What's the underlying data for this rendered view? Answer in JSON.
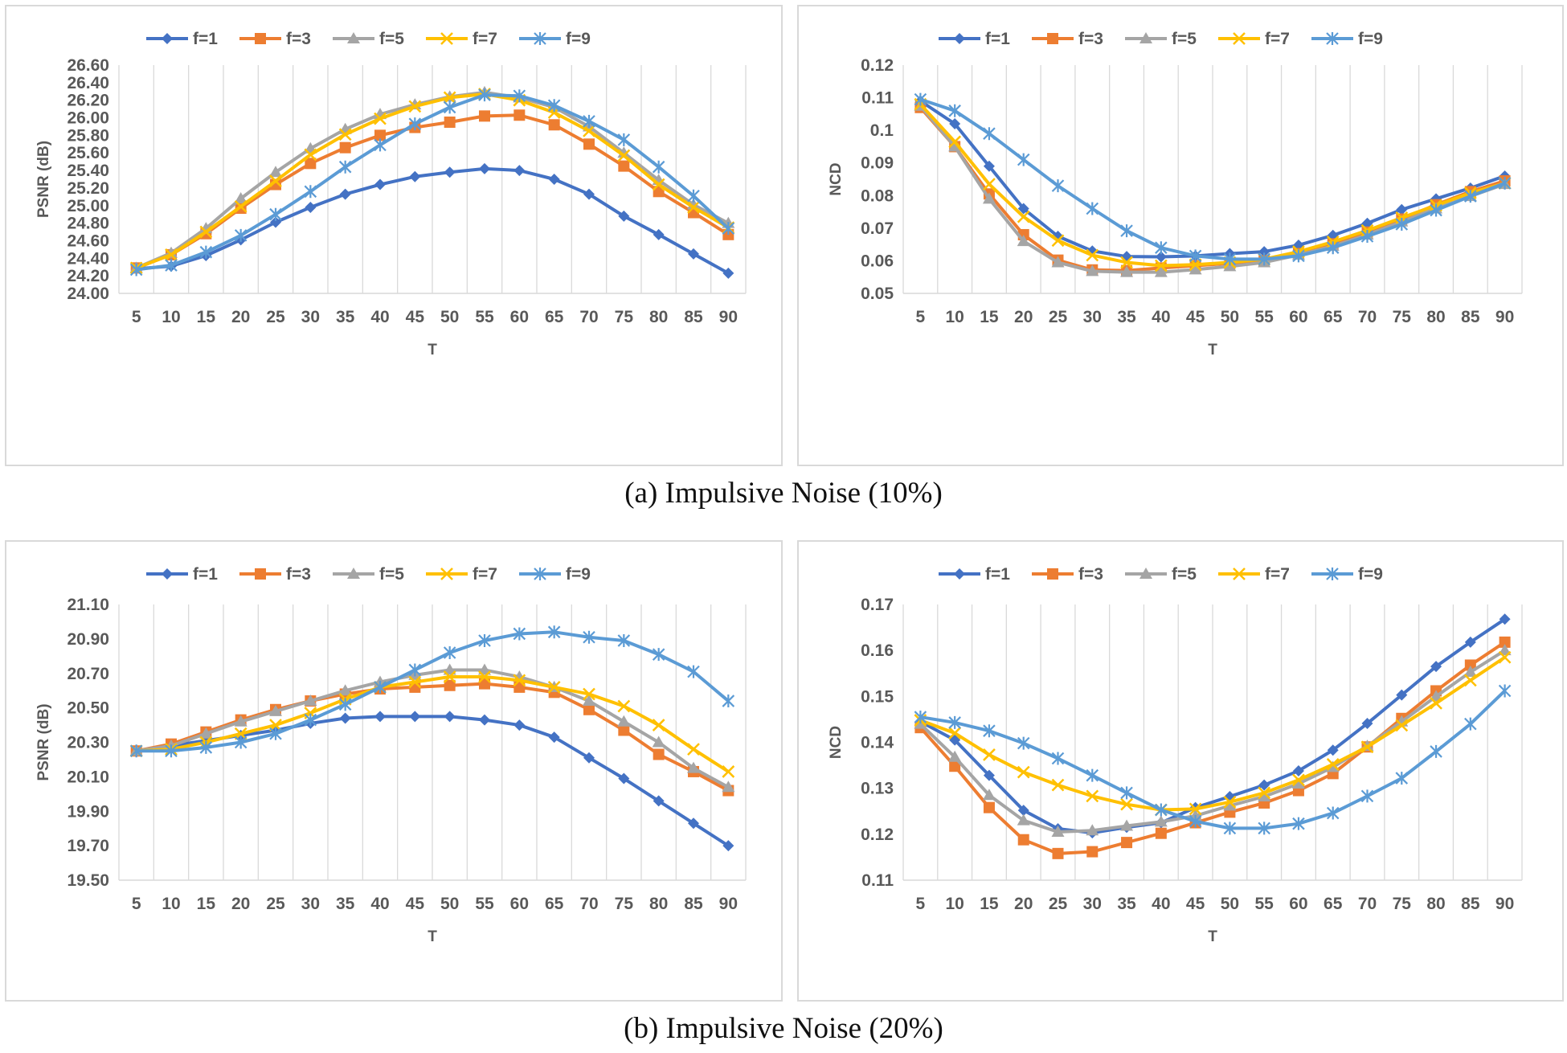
{
  "colors": {
    "f1": "#4472C4",
    "f3": "#ED7D31",
    "f5": "#A5A5A5",
    "f7": "#FFC000",
    "f9": "#5B9BD5"
  },
  "captions": [
    "(a) Impulsive Noise (10%)",
    "(b) Impulsive Noise (20%)"
  ],
  "chart_data": [
    {
      "type": "line",
      "title": "",
      "xlabel": "T",
      "ylabel": "PSNR (dB)",
      "categories": [
        "5",
        "10",
        "15",
        "20",
        "25",
        "30",
        "35",
        "40",
        "45",
        "50",
        "55",
        "60",
        "65",
        "70",
        "75",
        "80",
        "85",
        "90"
      ],
      "ylim": [
        24.0,
        26.6
      ],
      "yticks": [
        "24.00",
        "24.20",
        "24.40",
        "24.60",
        "24.80",
        "25.00",
        "25.20",
        "25.40",
        "25.60",
        "25.80",
        "26.00",
        "26.20",
        "26.40",
        "26.60"
      ],
      "legend": "top",
      "series": [
        {
          "name": "f=1",
          "marker": "diamond",
          "values": [
            24.28,
            24.31,
            24.43,
            24.61,
            24.81,
            24.98,
            25.13,
            25.24,
            25.33,
            25.38,
            25.42,
            25.4,
            25.3,
            25.13,
            24.88,
            24.67,
            24.45,
            24.23
          ]
        },
        {
          "name": "f=3",
          "marker": "square",
          "values": [
            24.29,
            24.44,
            24.68,
            24.97,
            25.24,
            25.48,
            25.66,
            25.8,
            25.89,
            25.95,
            26.02,
            26.03,
            25.92,
            25.7,
            25.45,
            25.16,
            24.92,
            24.67
          ]
        },
        {
          "name": "f=5",
          "marker": "triangle",
          "values": [
            24.29,
            24.46,
            24.74,
            25.08,
            25.38,
            25.65,
            25.87,
            26.04,
            26.15,
            26.24,
            26.29,
            26.23,
            26.12,
            25.9,
            25.6,
            25.29,
            25.01,
            24.8
          ]
        },
        {
          "name": "f=7",
          "marker": "x",
          "values": [
            24.29,
            24.44,
            24.7,
            24.99,
            25.28,
            25.58,
            25.81,
            25.99,
            26.13,
            26.23,
            26.27,
            26.2,
            26.06,
            25.85,
            25.57,
            25.24,
            24.98,
            24.75
          ]
        },
        {
          "name": "f=9",
          "marker": "star",
          "values": [
            24.27,
            24.32,
            24.47,
            24.66,
            24.9,
            25.16,
            25.44,
            25.69,
            25.93,
            26.12,
            26.26,
            26.25,
            26.14,
            25.96,
            25.75,
            25.44,
            25.11,
            24.74
          ]
        }
      ]
    },
    {
      "type": "line",
      "title": "",
      "xlabel": "T",
      "ylabel": "NCD",
      "categories": [
        "5",
        "10",
        "15",
        "20",
        "25",
        "30",
        "35",
        "40",
        "45",
        "50",
        "55",
        "60",
        "65",
        "70",
        "75",
        "80",
        "85",
        "90"
      ],
      "ylim": [
        0.05,
        0.12
      ],
      "yticks": [
        "0.05",
        "0.06",
        "0.07",
        "0.08",
        "0.09",
        "0.1",
        "0.11",
        "0.12"
      ],
      "legend": "top",
      "series": [
        {
          "name": "f=1",
          "marker": "diamond",
          "values": [
            0.109,
            0.102,
            0.089,
            0.076,
            0.0675,
            0.063,
            0.0613,
            0.0612,
            0.0615,
            0.0622,
            0.0628,
            0.0648,
            0.0678,
            0.0715,
            0.0757,
            0.079,
            0.0823,
            0.086
          ]
        },
        {
          "name": "f=3",
          "marker": "square",
          "values": [
            0.107,
            0.095,
            0.0805,
            0.068,
            0.0602,
            0.0572,
            0.057,
            0.0578,
            0.0585,
            0.0592,
            0.06,
            0.0622,
            0.0652,
            0.0688,
            0.0728,
            0.0772,
            0.0812,
            0.0845
          ]
        },
        {
          "name": "f=5",
          "marker": "triangle",
          "values": [
            0.1075,
            0.095,
            0.079,
            0.066,
            0.0595,
            0.0568,
            0.0565,
            0.0565,
            0.0573,
            0.0583,
            0.0595,
            0.0618,
            0.0645,
            0.068,
            0.072,
            0.076,
            0.0798,
            0.0835
          ]
        },
        {
          "name": "f=7",
          "marker": "x",
          "values": [
            0.108,
            0.0965,
            0.0835,
            0.0735,
            0.0662,
            0.0617,
            0.0595,
            0.0585,
            0.0588,
            0.0595,
            0.0605,
            0.0628,
            0.0658,
            0.0693,
            0.0732,
            0.077,
            0.0808,
            0.0838
          ]
        },
        {
          "name": "f=9",
          "marker": "star",
          "values": [
            0.1095,
            0.106,
            0.099,
            0.091,
            0.083,
            0.076,
            0.0692,
            0.064,
            0.0615,
            0.0605,
            0.0605,
            0.0615,
            0.064,
            0.0675,
            0.0712,
            0.0755,
            0.0798,
            0.0838
          ]
        }
      ]
    },
    {
      "type": "line",
      "title": "",
      "xlabel": "T",
      "ylabel": "PSNR (dB)",
      "categories": [
        "5",
        "10",
        "15",
        "20",
        "25",
        "30",
        "35",
        "40",
        "45",
        "50",
        "55",
        "60",
        "65",
        "70",
        "75",
        "80",
        "85",
        "90"
      ],
      "ylim": [
        19.5,
        21.1
      ],
      "yticks": [
        "19.50",
        "19.70",
        "19.90",
        "20.10",
        "20.30",
        "20.50",
        "20.70",
        "20.90",
        "21.10"
      ],
      "legend": "top",
      "series": [
        {
          "name": "f=1",
          "marker": "diamond",
          "values": [
            20.25,
            20.28,
            20.31,
            20.34,
            20.37,
            20.41,
            20.44,
            20.45,
            20.45,
            20.45,
            20.43,
            20.4,
            20.33,
            20.21,
            20.09,
            19.96,
            19.83,
            19.7
          ]
        },
        {
          "name": "f=3",
          "marker": "square",
          "values": [
            20.25,
            20.29,
            20.36,
            20.43,
            20.49,
            20.54,
            20.58,
            20.61,
            20.62,
            20.63,
            20.64,
            20.62,
            20.59,
            20.49,
            20.37,
            20.23,
            20.13,
            20.02
          ]
        },
        {
          "name": "f=5",
          "marker": "triangle",
          "values": [
            20.25,
            20.28,
            20.35,
            20.42,
            20.48,
            20.54,
            20.6,
            20.65,
            20.69,
            20.72,
            20.72,
            20.68,
            20.62,
            20.54,
            20.42,
            20.3,
            20.15,
            20.04
          ]
        },
        {
          "name": "f=7",
          "marker": "x",
          "values": [
            20.25,
            20.26,
            20.3,
            20.35,
            20.4,
            20.47,
            20.55,
            20.62,
            20.65,
            20.68,
            20.68,
            20.66,
            20.62,
            20.58,
            20.51,
            20.4,
            20.26,
            20.13
          ]
        },
        {
          "name": "f=9",
          "marker": "star",
          "values": [
            20.25,
            20.25,
            20.27,
            20.3,
            20.35,
            20.43,
            20.52,
            20.62,
            20.72,
            20.82,
            20.89,
            20.93,
            20.94,
            20.91,
            20.89,
            20.81,
            20.71,
            20.54
          ]
        }
      ]
    },
    {
      "type": "line",
      "title": "",
      "xlabel": "T",
      "ylabel": "NCD",
      "categories": [
        "5",
        "10",
        "15",
        "20",
        "25",
        "30",
        "35",
        "40",
        "45",
        "50",
        "55",
        "60",
        "65",
        "70",
        "75",
        "80",
        "85",
        "90"
      ],
      "ylim": [
        0.11,
        0.17
      ],
      "yticks": [
        "0.11",
        "0.12",
        "0.13",
        "0.14",
        "0.15",
        "0.16",
        "0.17"
      ],
      "legend": "top",
      "series": [
        {
          "name": "f=1",
          "marker": "diamond",
          "values": [
            0.1445,
            0.1405,
            0.1328,
            0.1252,
            0.1212,
            0.1203,
            0.1215,
            0.1225,
            0.1258,
            0.1282,
            0.1307,
            0.1338,
            0.1383,
            0.1441,
            0.1503,
            0.1565,
            0.1618,
            0.1668
          ]
        },
        {
          "name": "f=3",
          "marker": "square",
          "values": [
            0.1432,
            0.1348,
            0.1258,
            0.1188,
            0.1158,
            0.1162,
            0.1182,
            0.1202,
            0.1225,
            0.1248,
            0.1268,
            0.1295,
            0.1332,
            0.139,
            0.1452,
            0.1512,
            0.1568,
            0.1618
          ]
        },
        {
          "name": "f=5",
          "marker": "triangle",
          "values": [
            0.144,
            0.1368,
            0.1285,
            0.123,
            0.1205,
            0.1208,
            0.1218,
            0.1227,
            0.124,
            0.1262,
            0.1282,
            0.131,
            0.1346,
            0.1392,
            0.1445,
            0.15,
            0.1553,
            0.16
          ]
        },
        {
          "name": "f=7",
          "marker": "x",
          "values": [
            0.1448,
            0.142,
            0.1373,
            0.1335,
            0.1307,
            0.1283,
            0.1265,
            0.1253,
            0.1255,
            0.127,
            0.129,
            0.1318,
            0.1352,
            0.139,
            0.1437,
            0.1485,
            0.1535,
            0.1585
          ]
        },
        {
          "name": "f=9",
          "marker": "star",
          "values": [
            0.1455,
            0.1443,
            0.1425,
            0.1398,
            0.1365,
            0.1328,
            0.129,
            0.1253,
            0.1228,
            0.1213,
            0.1213,
            0.1223,
            0.1246,
            0.1283,
            0.1322,
            0.138,
            0.144,
            0.1512
          ]
        }
      ]
    }
  ]
}
